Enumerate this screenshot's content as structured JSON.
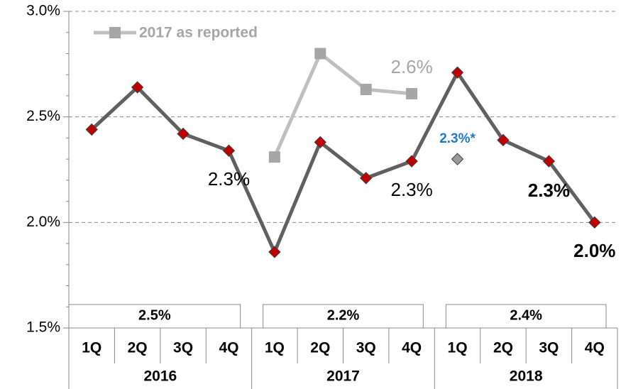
{
  "chart_data": {
    "type": "line",
    "categories": [
      "1Q",
      "2Q",
      "3Q",
      "4Q",
      "1Q",
      "2Q",
      "3Q",
      "4Q",
      "1Q",
      "2Q",
      "3Q",
      "4Q"
    ],
    "groups": [
      "2016",
      "2017",
      "2018"
    ],
    "group_values": [
      2.5,
      2.2,
      2.4
    ],
    "group_value_labels": [
      "2.5%",
      "2.2%",
      "2.4%"
    ],
    "series": [
      {
        "color": "#606060",
        "marker_color": "#c00000",
        "values": [
          2.44,
          2.64,
          2.42,
          2.34,
          1.86,
          2.38,
          2.21,
          2.29,
          2.71,
          2.39,
          2.29,
          2.0
        ],
        "value_labels": [
          null,
          null,
          null,
          "2.3%",
          null,
          null,
          null,
          "2.3%",
          null,
          null,
          "2.3%",
          "2.0%"
        ]
      },
      {
        "name": "2017 as reported",
        "color": "#bfbfbf",
        "marker_color": "#a6a6a6",
        "values": [
          null,
          null,
          null,
          null,
          2.31,
          2.8,
          2.63,
          2.61,
          null,
          null,
          null,
          null
        ],
        "value_labels": [
          null,
          null,
          null,
          null,
          null,
          null,
          null,
          "2.6%",
          null,
          null,
          null,
          null
        ]
      },
      {
        "color": "#999999",
        "label_color": "#1f78c8",
        "values": [
          null,
          null,
          null,
          null,
          null,
          null,
          null,
          null,
          2.3,
          null,
          null,
          null
        ],
        "value_labels": [
          null,
          null,
          null,
          null,
          null,
          null,
          null,
          null,
          "2.3%*",
          null,
          null,
          null
        ]
      }
    ],
    "ylim": [
      1.5,
      3.0
    ],
    "yticks": [
      {
        "value": 1.5,
        "label": "1.5%"
      },
      {
        "value": 2.0,
        "label": "2.0%"
      },
      {
        "value": 2.5,
        "label": "2.5%"
      },
      {
        "value": 3.0,
        "label": "3.0%"
      }
    ],
    "grid": true
  }
}
